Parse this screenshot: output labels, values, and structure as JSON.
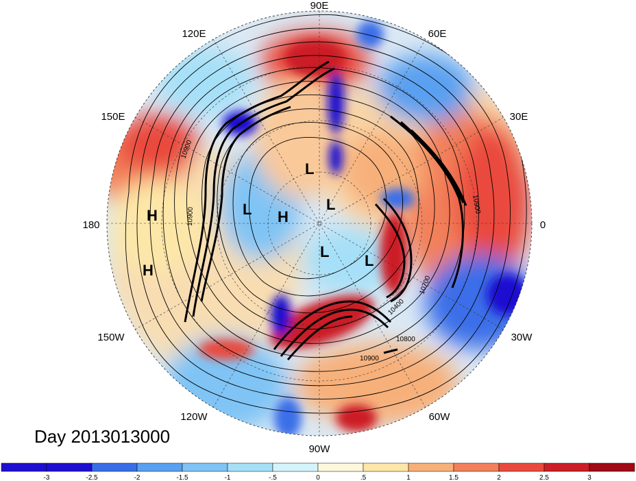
{
  "map": {
    "day_label": "Day 2013013000",
    "longitude_labels": [
      {
        "text": "90E",
        "lon": "90E"
      },
      {
        "text": "60E",
        "lon": "60E"
      },
      {
        "text": "30E",
        "lon": "30E"
      },
      {
        "text": "0",
        "lon": "0"
      },
      {
        "text": "30W",
        "lon": "30W"
      },
      {
        "text": "60W",
        "lon": "60W"
      },
      {
        "text": "90W",
        "lon": "90W"
      },
      {
        "text": "120W",
        "lon": "120W"
      },
      {
        "text": "150W",
        "lon": "150W"
      },
      {
        "text": "180",
        "lon": "180"
      },
      {
        "text": "150E",
        "lon": "150E"
      },
      {
        "text": "120E",
        "lon": "120E"
      }
    ],
    "pressure_centers": [
      {
        "label": "H",
        "region": "central Pacific, north"
      },
      {
        "label": "H",
        "region": "central Pacific, south"
      },
      {
        "label": "L",
        "region": "Siberia"
      },
      {
        "label": "L",
        "region": "East Siberian Sea"
      },
      {
        "label": "H",
        "region": "Arctic near pole"
      },
      {
        "label": "L",
        "region": "Arctic near pole"
      },
      {
        "label": "L",
        "region": "Canadian Arctic"
      },
      {
        "label": "L",
        "region": "Greenland"
      }
    ],
    "contour_labels": [
      "10900",
      "10900",
      "10900",
      "10700",
      "10400",
      "10800",
      "10900"
    ]
  },
  "colorbar": {
    "ticks": [
      "-3",
      "-2.5",
      "-2",
      "-1.5",
      "-1",
      "-.5",
      "0",
      ".5",
      "1",
      "1.5",
      "2",
      "2.5",
      "3"
    ],
    "colors": [
      "#1f10d0",
      "#3a6ee8",
      "#5aa0f0",
      "#7fc4f5",
      "#a6e0f8",
      "#d4f4fb",
      "#fdf8dc",
      "#fde7a8",
      "#f7b07a",
      "#f2805a",
      "#ea4a3e",
      "#cc1e26",
      "#a00a14"
    ]
  }
}
